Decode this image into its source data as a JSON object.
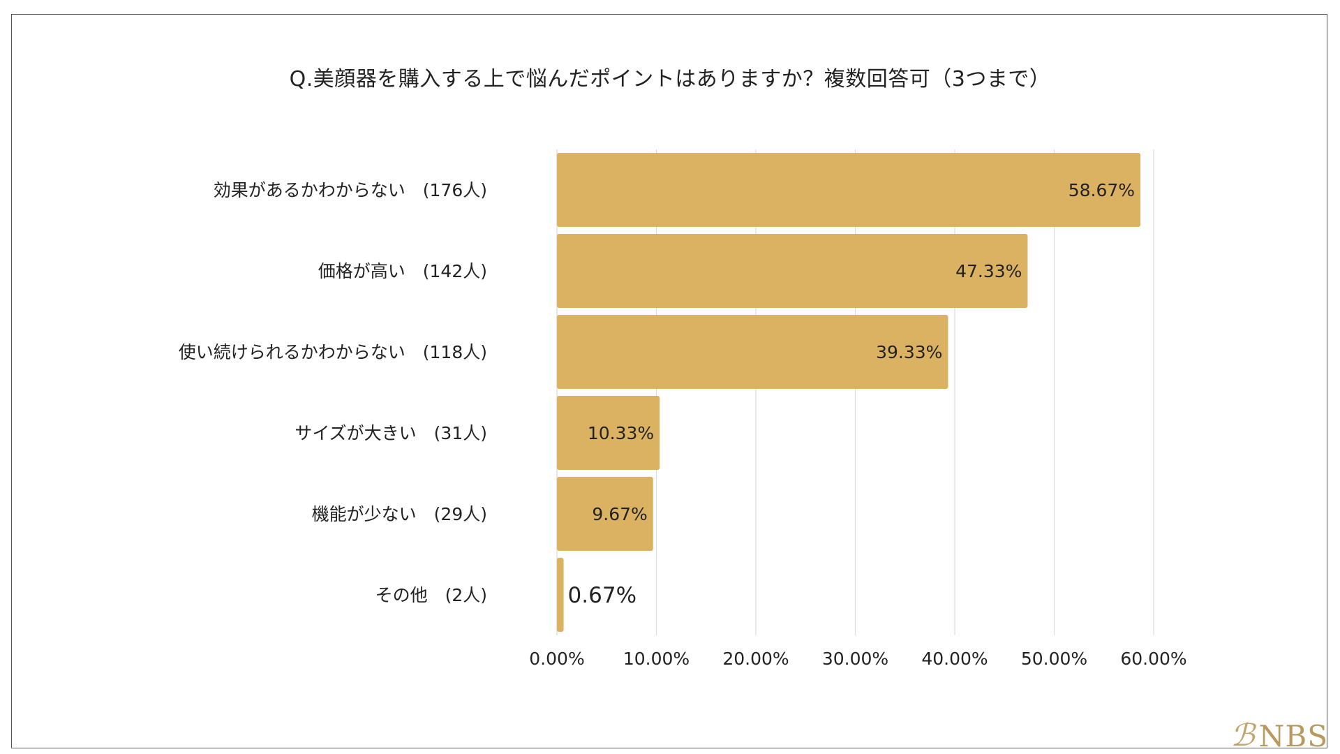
{
  "chart_data": {
    "type": "bar",
    "orientation": "horizontal",
    "title": "Q.美顔器を購入する上で悩んだポイントはありますか？複数回答可（3つまで）",
    "categories": [
      "効果があるかわからない　(176人)",
      "価格が高い　(142人)",
      "使い続けられるかわからない　(118人)",
      "サイズが大きい　(31人)",
      "機能が少ない　(29人)",
      "その他　(2人)"
    ],
    "values": [
      58.67,
      47.33,
      39.33,
      10.33,
      9.67,
      0.67
    ],
    "data_labels": [
      "58.67%",
      "47.33%",
      "39.33%",
      "10.33%",
      "9.67%",
      "0.67%"
    ],
    "xlim": [
      0,
      60
    ],
    "xticks": [
      0,
      10,
      20,
      30,
      40,
      50,
      60
    ],
    "xtick_labels": [
      "0.00%",
      "10.00%",
      "20.00%",
      "30.00%",
      "40.00%",
      "50.00%",
      "60.00%"
    ],
    "xlabel": "",
    "ylabel": "",
    "grid": true,
    "bar_color": "#dbb162",
    "grid_color": "#dcdcdc",
    "text_color": "#222222"
  },
  "logo": {
    "mark": "ℬ",
    "text": "NBS",
    "color": "#b89a5f"
  }
}
